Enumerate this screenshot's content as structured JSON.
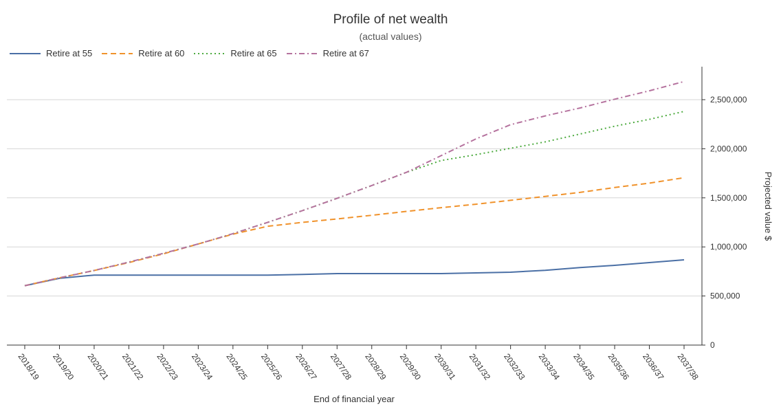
{
  "chart_data": {
    "type": "line",
    "title": "Profile of net wealth",
    "subtitle": "(actual values)",
    "xlabel": "End of financial year",
    "ylabel": "Projected value $",
    "ylim": [
      0,
      2750000
    ],
    "y_ticks": [
      0,
      500000,
      1000000,
      1500000,
      2000000,
      2500000
    ],
    "y_tick_labels": [
      "0",
      "500,000",
      "1,000,000",
      "1,500,000",
      "2,000,000",
      "2,500,000"
    ],
    "y_axis_position": "right",
    "grid": true,
    "legend_position": "top-left",
    "categories": [
      "2018/19",
      "2019/20",
      "2020/21",
      "2021/22",
      "2022/23",
      "2023/24",
      "2024/25",
      "2025/26",
      "2026/27",
      "2027/28",
      "2028/29",
      "2029/30",
      "2030/31",
      "2031/32",
      "2032/33",
      "2033/34",
      "2034/35",
      "2035/36",
      "2036/37",
      "2037/38"
    ],
    "series": [
      {
        "name": "Retire at 55",
        "color": "#4a6fa5",
        "dash": "solid",
        "values": [
          605000,
          680000,
          713000,
          712000,
          712000,
          712000,
          712000,
          712000,
          720000,
          728000,
          728000,
          728000,
          728000,
          735000,
          742000,
          762000,
          790000,
          812000,
          840000,
          868000
        ]
      },
      {
        "name": "Retire at 60",
        "color": "#f0922b",
        "dash": "dashed",
        "values": [
          605000,
          685000,
          760000,
          840000,
          930000,
          1030000,
          1130000,
          1210000,
          1250000,
          1285000,
          1322000,
          1362000,
          1400000,
          1435000,
          1475000,
          1515000,
          1555000,
          1605000,
          1650000,
          1705000
        ]
      },
      {
        "name": "Retire at 65",
        "color": "#4caa3e",
        "dash": "dotted",
        "values": [
          605000,
          685000,
          760000,
          845000,
          935000,
          1030000,
          1135000,
          1250000,
          1370000,
          1495000,
          1625000,
          1760000,
          1880000,
          1940000,
          2005000,
          2070000,
          2150000,
          2230000,
          2300000,
          2380000
        ]
      },
      {
        "name": "Retire at 67",
        "color": "#b5729e",
        "dash": "dashdot",
        "values": [
          605000,
          685000,
          760000,
          845000,
          935000,
          1030000,
          1135000,
          1250000,
          1370000,
          1495000,
          1625000,
          1760000,
          1930000,
          2100000,
          2245000,
          2335000,
          2415000,
          2505000,
          2590000,
          2685000
        ]
      }
    ]
  }
}
